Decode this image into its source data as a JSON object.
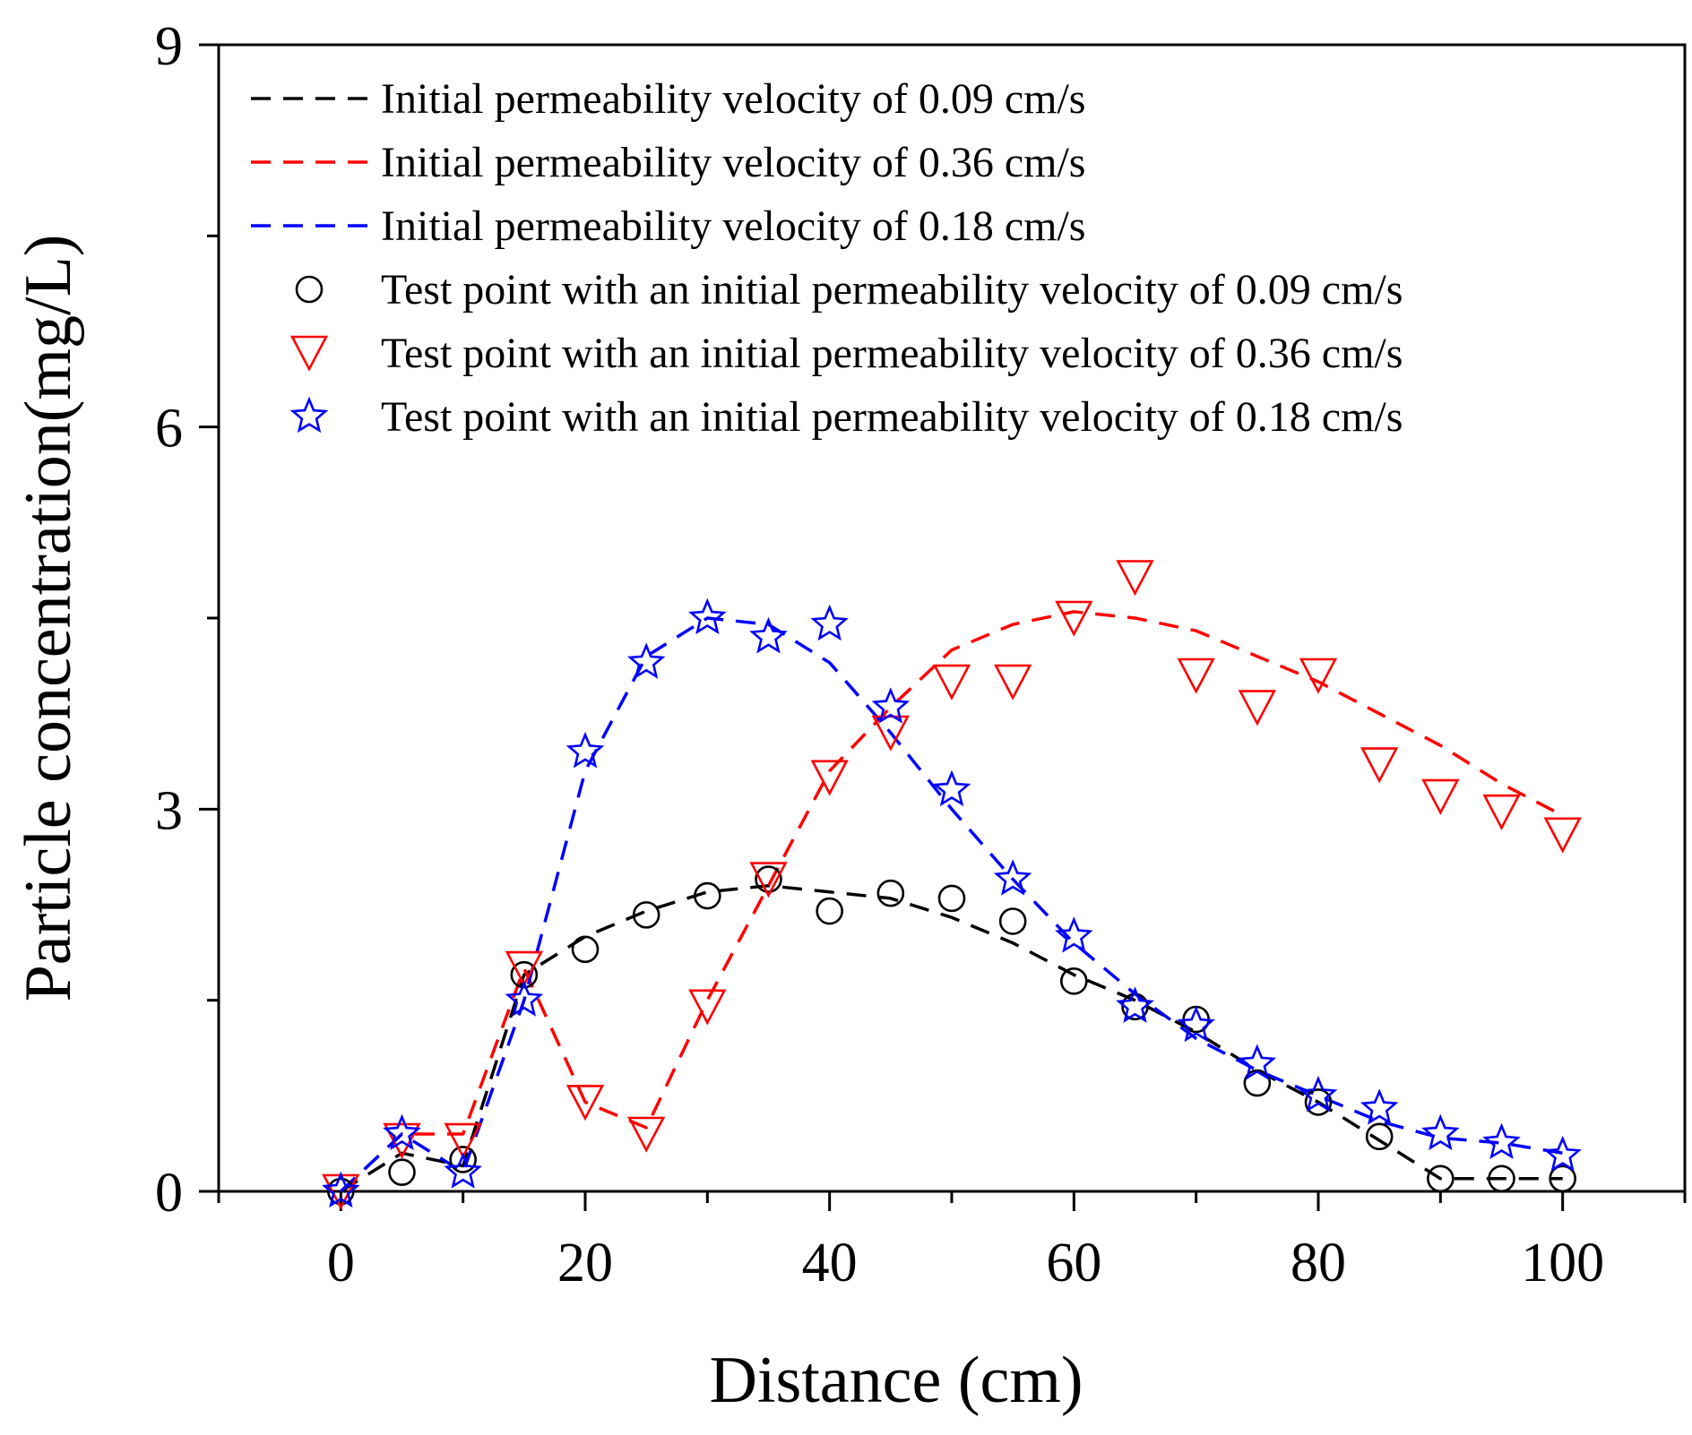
{
  "chart_data": {
    "type": "line",
    "title": "",
    "xlabel": "Distance (cm)",
    "ylabel": "Particle concentration(mg/L)",
    "xlim": [
      -10,
      110
    ],
    "ylim": [
      0,
      9
    ],
    "x_ticks": [
      0,
      20,
      40,
      60,
      80,
      100
    ],
    "y_ticks": [
      0,
      3,
      6,
      9
    ],
    "grid": false,
    "legend_position": "top-left",
    "colors": {
      "black": "#000000",
      "red": "#ff0000",
      "blue": "#0000ff"
    },
    "series": [
      {
        "name": "Initial permeability velocity of 0.09 cm/s",
        "kind": "fit-line",
        "color": "#000000",
        "x": [
          0,
          5,
          10,
          15,
          20,
          25,
          30,
          35,
          40,
          45,
          50,
          55,
          60,
          65,
          70,
          75,
          80,
          85,
          90,
          95,
          100
        ],
        "y": [
          0.0,
          0.3,
          0.2,
          1.7,
          2.0,
          2.2,
          2.35,
          2.4,
          2.35,
          2.3,
          2.15,
          1.95,
          1.7,
          1.5,
          1.25,
          0.95,
          0.7,
          0.4,
          0.1,
          0.1,
          0.1
        ]
      },
      {
        "name": "Initial permeability velocity of 0.36 cm/s",
        "kind": "fit-line",
        "color": "#ff0000",
        "x": [
          0,
          5,
          10,
          15,
          20,
          25,
          30,
          35,
          40,
          45,
          50,
          55,
          60,
          65,
          70,
          75,
          80,
          85,
          90,
          95,
          100
        ],
        "y": [
          0.0,
          0.45,
          0.45,
          1.75,
          0.7,
          0.5,
          1.5,
          2.4,
          3.3,
          3.8,
          4.25,
          4.45,
          4.55,
          4.5,
          4.4,
          4.2,
          4.0,
          3.75,
          3.5,
          3.2,
          2.95
        ]
      },
      {
        "name": "Initial permeability velocity of 0.18 cm/s",
        "kind": "fit-line",
        "color": "#0000ff",
        "x": [
          0,
          5,
          10,
          15,
          20,
          25,
          30,
          35,
          40,
          45,
          50,
          55,
          60,
          65,
          70,
          75,
          80,
          85,
          90,
          95,
          100
        ],
        "y": [
          0.0,
          0.45,
          0.15,
          1.5,
          3.3,
          4.2,
          4.5,
          4.45,
          4.15,
          3.6,
          3.0,
          2.45,
          1.95,
          1.55,
          1.2,
          0.95,
          0.75,
          0.55,
          0.42,
          0.38,
          0.3
        ]
      },
      {
        "name": "Test point with an initial permeability velocity of 0.09 cm/s",
        "kind": "markers",
        "marker": "circle",
        "color": "#000000",
        "x": [
          0,
          5,
          10,
          15,
          20,
          25,
          30,
          35,
          40,
          45,
          50,
          55,
          60,
          65,
          70,
          75,
          80,
          85,
          90,
          95,
          100
        ],
        "y": [
          0.0,
          0.15,
          0.25,
          1.7,
          1.9,
          2.17,
          2.32,
          2.45,
          2.2,
          2.34,
          2.3,
          2.12,
          1.65,
          1.45,
          1.35,
          0.85,
          0.7,
          0.43,
          0.1,
          0.1,
          0.1
        ]
      },
      {
        "name": "Test point with an initial permeability velocity of 0.36 cm/s",
        "kind": "markers",
        "marker": "triangle-down",
        "color": "#ff0000",
        "x": [
          0,
          5,
          10,
          15,
          20,
          25,
          30,
          35,
          40,
          45,
          50,
          55,
          60,
          65,
          70,
          75,
          80,
          85,
          90,
          95,
          100
        ],
        "y": [
          0.0,
          0.4,
          0.4,
          1.75,
          0.7,
          0.45,
          1.45,
          2.45,
          3.25,
          3.6,
          4.0,
          4.0,
          4.5,
          4.82,
          4.05,
          3.8,
          4.05,
          3.35,
          3.1,
          2.98,
          2.8
        ]
      },
      {
        "name": "Test point with an initial permeability velocity of 0.18 cm/s",
        "kind": "markers",
        "marker": "star",
        "color": "#0000ff",
        "x": [
          0,
          5,
          10,
          15,
          20,
          25,
          30,
          35,
          40,
          45,
          50,
          55,
          60,
          65,
          70,
          75,
          80,
          85,
          90,
          95,
          100
        ],
        "y": [
          0.0,
          0.45,
          0.15,
          1.5,
          3.45,
          4.15,
          4.5,
          4.35,
          4.45,
          3.8,
          3.15,
          2.45,
          2.0,
          1.45,
          1.3,
          1.0,
          0.75,
          0.65,
          0.45,
          0.38,
          0.28
        ]
      }
    ]
  }
}
